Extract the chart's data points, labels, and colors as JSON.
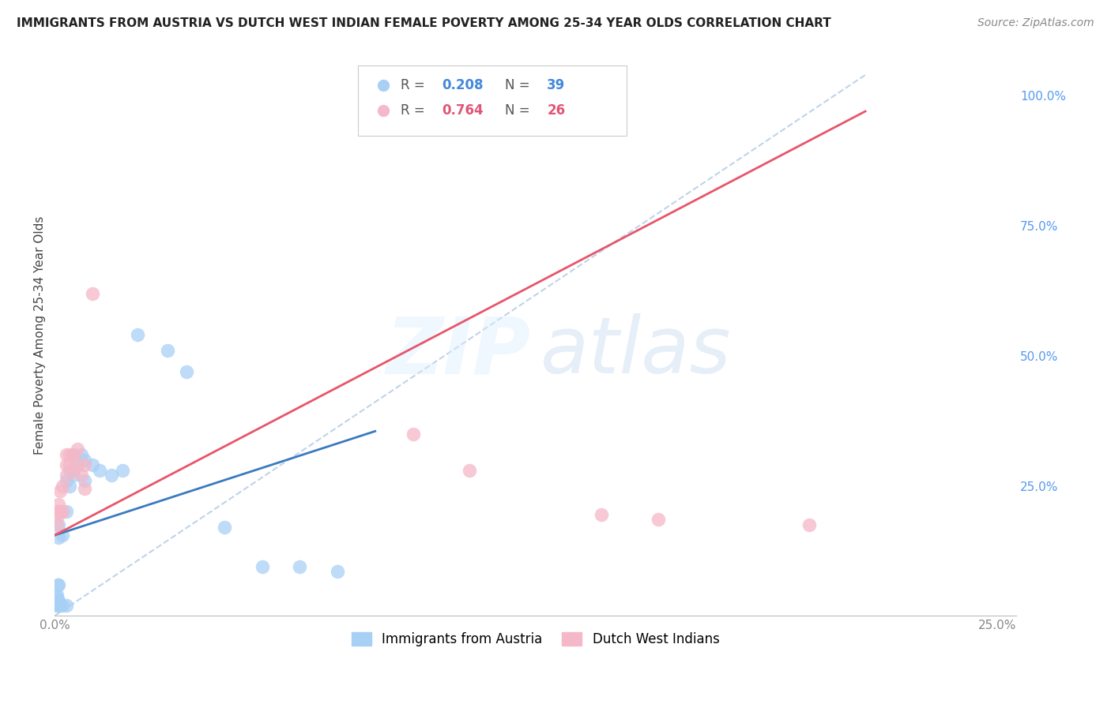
{
  "title": "IMMIGRANTS FROM AUSTRIA VS DUTCH WEST INDIAN FEMALE POVERTY AMONG 25-34 YEAR OLDS CORRELATION CHART",
  "source": "Source: ZipAtlas.com",
  "ylabel": "Female Poverty Among 25-34 Year Olds",
  "xlim": [
    0.0,
    0.255
  ],
  "ylim": [
    0.0,
    1.08
  ],
  "blue_color": "#a8d0f5",
  "pink_color": "#f5b8c8",
  "blue_line_color": "#3a7abf",
  "pink_line_color": "#e8556a",
  "ref_line_color": "#b8cfe8",
  "legend_r_blue": "0.208",
  "legend_n_blue": "39",
  "legend_r_pink": "0.764",
  "legend_n_pink": "26",
  "legend_label_blue": "Immigrants from Austria",
  "legend_label_pink": "Dutch West Indians",
  "blue_x": [
    0.0005,
    0.0005,
    0.0005,
    0.0005,
    0.0005,
    0.0007,
    0.0007,
    0.0007,
    0.001,
    0.001,
    0.001,
    0.001,
    0.001,
    0.001,
    0.0015,
    0.002,
    0.002,
    0.003,
    0.003,
    0.003,
    0.004,
    0.004,
    0.005,
    0.005,
    0.006,
    0.007,
    0.008,
    0.008,
    0.01,
    0.012,
    0.015,
    0.018,
    0.022,
    0.03,
    0.035,
    0.045,
    0.055,
    0.065,
    0.075
  ],
  "blue_y": [
    0.02,
    0.025,
    0.03,
    0.035,
    0.04,
    0.02,
    0.025,
    0.06,
    0.02,
    0.025,
    0.03,
    0.06,
    0.15,
    0.175,
    0.02,
    0.02,
    0.155,
    0.02,
    0.2,
    0.26,
    0.25,
    0.28,
    0.27,
    0.31,
    0.29,
    0.31,
    0.26,
    0.3,
    0.29,
    0.28,
    0.27,
    0.28,
    0.54,
    0.51,
    0.47,
    0.17,
    0.095,
    0.095,
    0.085
  ],
  "pink_x": [
    0.0005,
    0.0007,
    0.001,
    0.001,
    0.0015,
    0.0015,
    0.002,
    0.002,
    0.003,
    0.003,
    0.003,
    0.004,
    0.004,
    0.005,
    0.005,
    0.006,
    0.006,
    0.007,
    0.008,
    0.008,
    0.01,
    0.095,
    0.11,
    0.145,
    0.16,
    0.2
  ],
  "pink_y": [
    0.175,
    0.2,
    0.195,
    0.215,
    0.2,
    0.24,
    0.2,
    0.25,
    0.27,
    0.29,
    0.31,
    0.29,
    0.31,
    0.28,
    0.31,
    0.29,
    0.32,
    0.27,
    0.245,
    0.29,
    0.62,
    0.35,
    0.28,
    0.195,
    0.185,
    0.175
  ],
  "blue_trend_x": [
    0.0,
    0.085
  ],
  "blue_trend_y": [
    0.155,
    0.355
  ],
  "pink_trend_x": [
    0.0,
    0.215
  ],
  "pink_trend_y": [
    0.155,
    0.97
  ],
  "ref_line_x": [
    0.0,
    0.215
  ],
  "ref_line_y": [
    0.0,
    1.04
  ]
}
